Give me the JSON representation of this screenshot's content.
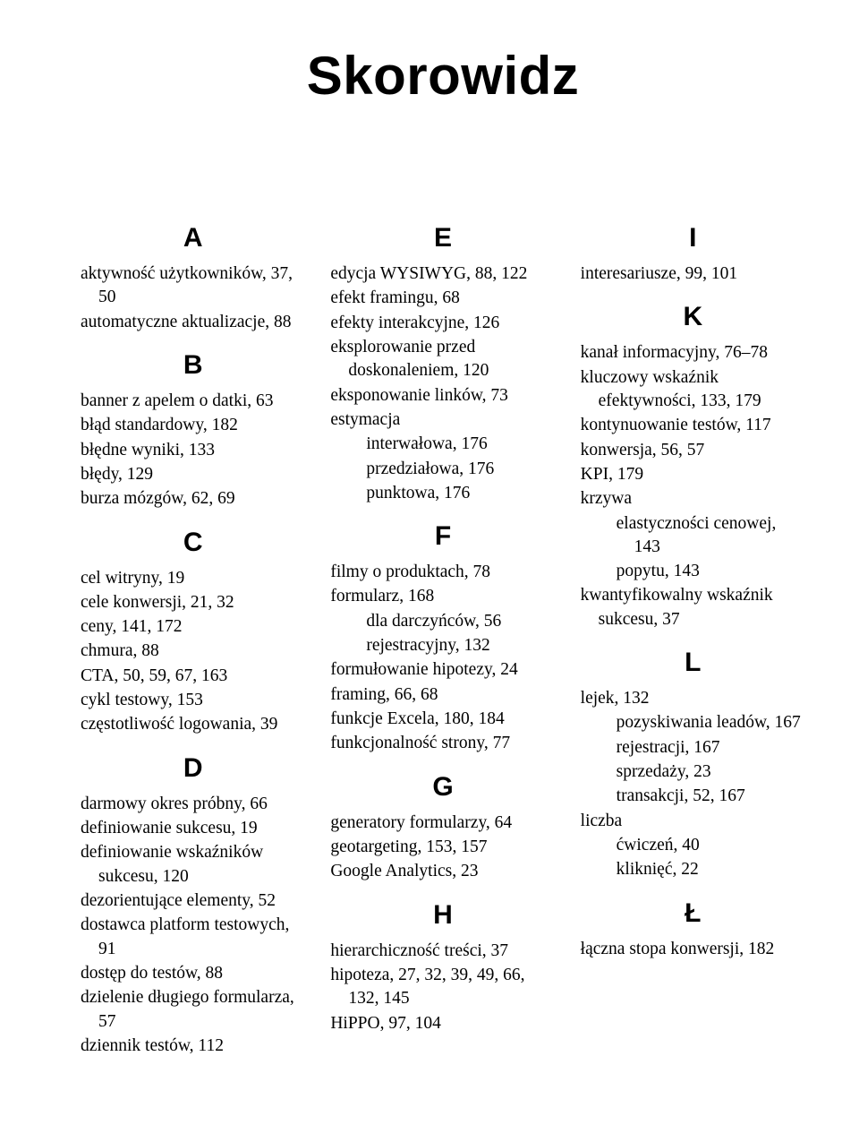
{
  "title": "Skorowidz",
  "columns": [
    {
      "sections": [
        {
          "letter": "A",
          "first": true,
          "entries": [
            {
              "text": "aktywność użytkowników, 37, 50",
              "level": 0
            },
            {
              "text": "automatyczne aktualizacje, 88",
              "level": 0
            }
          ]
        },
        {
          "letter": "B",
          "entries": [
            {
              "text": "banner z apelem o datki, 63",
              "level": 0
            },
            {
              "text": "błąd standardowy, 182",
              "level": 0
            },
            {
              "text": "błędne wyniki, 133",
              "level": 0
            },
            {
              "text": "błędy, 129",
              "level": 0
            },
            {
              "text": "burza mózgów, 62, 69",
              "level": 0
            }
          ]
        },
        {
          "letter": "C",
          "entries": [
            {
              "text": "cel witryny, 19",
              "level": 0
            },
            {
              "text": "cele konwersji, 21, 32",
              "level": 0
            },
            {
              "text": "ceny, 141, 172",
              "level": 0
            },
            {
              "text": "chmura, 88",
              "level": 0
            },
            {
              "text": "CTA, 50, 59, 67, 163",
              "level": 0
            },
            {
              "text": "cykl testowy, 153",
              "level": 0
            },
            {
              "text": "częstotliwość logowania, 39",
              "level": 0
            }
          ]
        },
        {
          "letter": "D",
          "entries": [
            {
              "text": "darmowy okres próbny, 66",
              "level": 0
            },
            {
              "text": "definiowanie sukcesu, 19",
              "level": 0
            },
            {
              "text": "definiowanie wskaźników sukcesu, 120",
              "level": 0
            },
            {
              "text": "dezorientujące elementy, 52",
              "level": 0
            },
            {
              "text": "dostawca platform testowych, 91",
              "level": 0
            },
            {
              "text": "dostęp do testów, 88",
              "level": 0
            },
            {
              "text": "dzielenie długiego formularza, 57",
              "level": 0
            },
            {
              "text": "dziennik testów, 112",
              "level": 0
            }
          ]
        }
      ]
    },
    {
      "sections": [
        {
          "letter": "E",
          "first": true,
          "entries": [
            {
              "text": "edycja WYSIWYG, 88, 122",
              "level": 0
            },
            {
              "text": "efekt framingu, 68",
              "level": 0
            },
            {
              "text": "efekty interakcyjne, 126",
              "level": 0
            },
            {
              "text": "eksplorowanie przed doskonaleniem, 120",
              "level": 0
            },
            {
              "text": "eksponowanie linków, 73",
              "level": 0
            },
            {
              "text": "estymacja",
              "level": 0
            },
            {
              "text": "interwałowa, 176",
              "level": 2
            },
            {
              "text": "przedziałowa, 176",
              "level": 2
            },
            {
              "text": "punktowa, 176",
              "level": 2
            }
          ]
        },
        {
          "letter": "F",
          "entries": [
            {
              "text": "filmy o produktach, 78",
              "level": 0
            },
            {
              "text": "formularz, 168",
              "level": 0
            },
            {
              "text": "dla darczyńców, 56",
              "level": 2
            },
            {
              "text": "rejestracyjny, 132",
              "level": 2
            },
            {
              "text": "formułowanie hipotezy, 24",
              "level": 0
            },
            {
              "text": "framing, 66, 68",
              "level": 0
            },
            {
              "text": "funkcje Excela, 180, 184",
              "level": 0
            },
            {
              "text": "funkcjonalność strony, 77",
              "level": 0
            }
          ]
        },
        {
          "letter": "G",
          "entries": [
            {
              "text": "generatory formularzy, 64",
              "level": 0
            },
            {
              "text": "geotargeting, 153, 157",
              "level": 0
            },
            {
              "text": "Google Analytics, 23",
              "level": 0
            }
          ]
        },
        {
          "letter": "H",
          "entries": [
            {
              "text": "hierarchiczność treści, 37",
              "level": 0
            },
            {
              "text": "hipoteza, 27, 32, 39, 49, 66, 132, 145",
              "level": 0
            },
            {
              "text": "HiPPO, 97, 104",
              "level": 0
            }
          ]
        }
      ]
    },
    {
      "sections": [
        {
          "letter": "I",
          "first": true,
          "entries": [
            {
              "text": "interesariusze, 99, 101",
              "level": 0
            }
          ]
        },
        {
          "letter": "K",
          "entries": [
            {
              "text": "kanał informacyjny, 76–78",
              "level": 0
            },
            {
              "text": "kluczowy wskaźnik efektywności, 133, 179",
              "level": 0
            },
            {
              "text": "kontynuowanie testów, 117",
              "level": 0
            },
            {
              "text": "konwersja, 56, 57",
              "level": 0
            },
            {
              "text": "KPI, 179",
              "level": 0
            },
            {
              "text": "krzywa",
              "level": 0
            },
            {
              "text": "elastyczności cenowej, 143",
              "level": 2
            },
            {
              "text": "popytu, 143",
              "level": 2
            },
            {
              "text": "kwantyfikowalny wskaźnik sukcesu, 37",
              "level": 0
            }
          ]
        },
        {
          "letter": "L",
          "entries": [
            {
              "text": "lejek, 132",
              "level": 0
            },
            {
              "text": "pozyskiwania leadów, 167",
              "level": 2
            },
            {
              "text": "rejestracji, 167",
              "level": 2
            },
            {
              "text": "sprzedaży, 23",
              "level": 2
            },
            {
              "text": "transakcji, 52, 167",
              "level": 2
            },
            {
              "text": "liczba",
              "level": 0
            },
            {
              "text": "ćwiczeń, 40",
              "level": 2
            },
            {
              "text": "kliknięć, 22",
              "level": 2
            }
          ]
        },
        {
          "letter": "Ł",
          "entries": [
            {
              "text": "łączna stopa konwersji, 182",
              "level": 0
            }
          ]
        }
      ]
    }
  ]
}
